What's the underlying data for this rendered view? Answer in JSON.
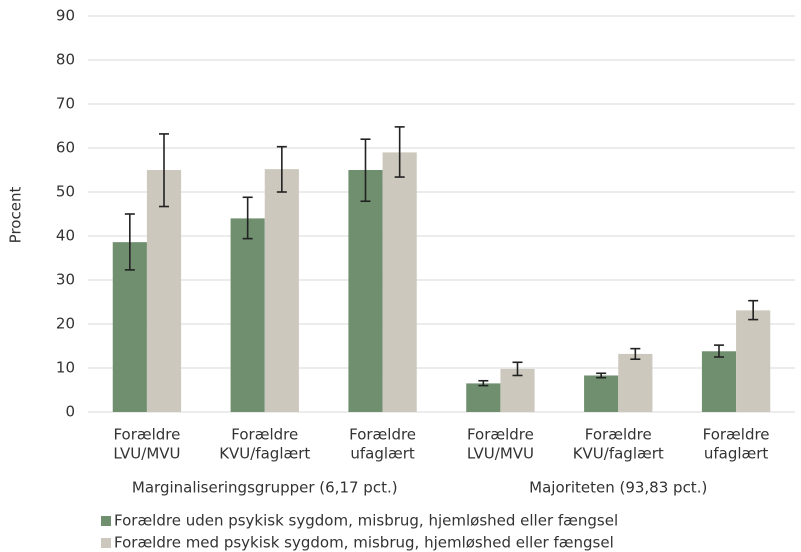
{
  "chart_data": {
    "type": "bar",
    "y_label": "Procent",
    "groups": [
      {
        "name": "Marginaliseringsgrupper (6,17 pct.)",
        "categories": [
          [
            "Forældre",
            "LVU/MVU"
          ],
          [
            "Forældre",
            "KVU/faglært"
          ],
          [
            "Forældre",
            "ufaglært"
          ]
        ]
      },
      {
        "name": "Majoriteten (93,83 pct.)",
        "categories": [
          [
            "Forældre",
            "LVU/MVU"
          ],
          [
            "Forældre",
            "KVU/faglært"
          ],
          [
            "Forældre",
            "ufaglært"
          ]
        ]
      }
    ],
    "series": [
      {
        "name": "Forældre uden psykisk sygdom, misbrug, hjemløshed eller fængsel",
        "color": "#6f8f6f",
        "values": [
          38.6,
          44,
          55,
          6.5,
          8.3,
          13.8
        ],
        "error_minus": [
          6.3,
          4.6,
          7.1,
          0.5,
          0.5,
          1.3
        ],
        "error_plus": [
          6.4,
          4.8,
          7,
          0.6,
          0.5,
          1.4
        ]
      },
      {
        "name": "Forældre med psykisk sygdom, misbrug, hjemløshed eller fængsel",
        "color": "#cdc8bd",
        "values": [
          55,
          55.2,
          59,
          9.8,
          13.2,
          23.1
        ],
        "error_minus": [
          8.3,
          5.2,
          5.6,
          1.5,
          1.2,
          2.1
        ],
        "error_plus": [
          8.2,
          5.1,
          5.8,
          1.5,
          1.2,
          2.2
        ]
      }
    ],
    "ylim": [
      0,
      90
    ],
    "yticks": [
      0,
      10,
      20,
      30,
      40,
      50,
      60,
      70,
      80,
      90
    ],
    "grid": true,
    "legend": "bottom"
  }
}
